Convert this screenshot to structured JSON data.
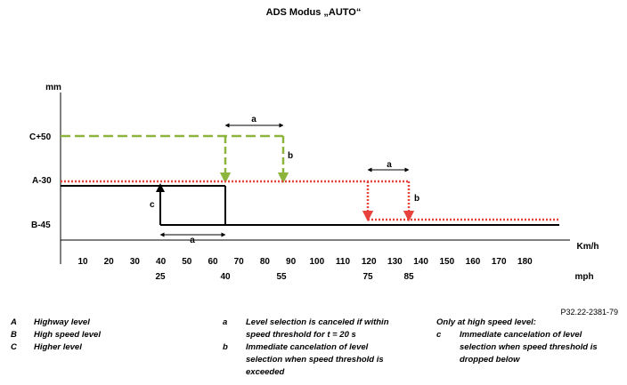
{
  "title": "ADS Modus „AUTO“",
  "figure_ref": "P32.22-2381-79",
  "diagram": {
    "y_axis_label": "mm",
    "x_axis_label": "Km/h",
    "mph_label": "mph",
    "levels": [
      "C+50",
      "A-30",
      "B-45"
    ],
    "kmh_ticks": [
      "10",
      "20",
      "30",
      "40",
      "50",
      "60",
      "70",
      "80",
      "90",
      "100",
      "110",
      "120",
      "130",
      "140",
      "150",
      "160",
      "170",
      "180"
    ],
    "mph_ticks": [
      "25",
      "40",
      "55",
      "75",
      "85"
    ],
    "annotations": {
      "a": "a",
      "b": "b",
      "c": "c"
    },
    "colors": {
      "green": "#8db53c",
      "red": "#e8423c",
      "black": "#000000"
    }
  },
  "legend_left": [
    {
      "key": "A",
      "text": "Highway level"
    },
    {
      "key": "B",
      "text": "High speed level"
    },
    {
      "key": "C",
      "text": "Higher level"
    }
  ],
  "legend_middle": [
    {
      "key": "a",
      "text": "Level selection is canceled if within speed threshold for t = 20 s"
    },
    {
      "key": "b",
      "text": "Immediate cancelation of level selection when speed threshold is exceeded"
    }
  ],
  "legend_right": {
    "heading": "Only at high speed level:",
    "items": [
      {
        "key": "c",
        "text": "Immediate cancelation of level selection when speed threshold is dropped below"
      }
    ]
  }
}
